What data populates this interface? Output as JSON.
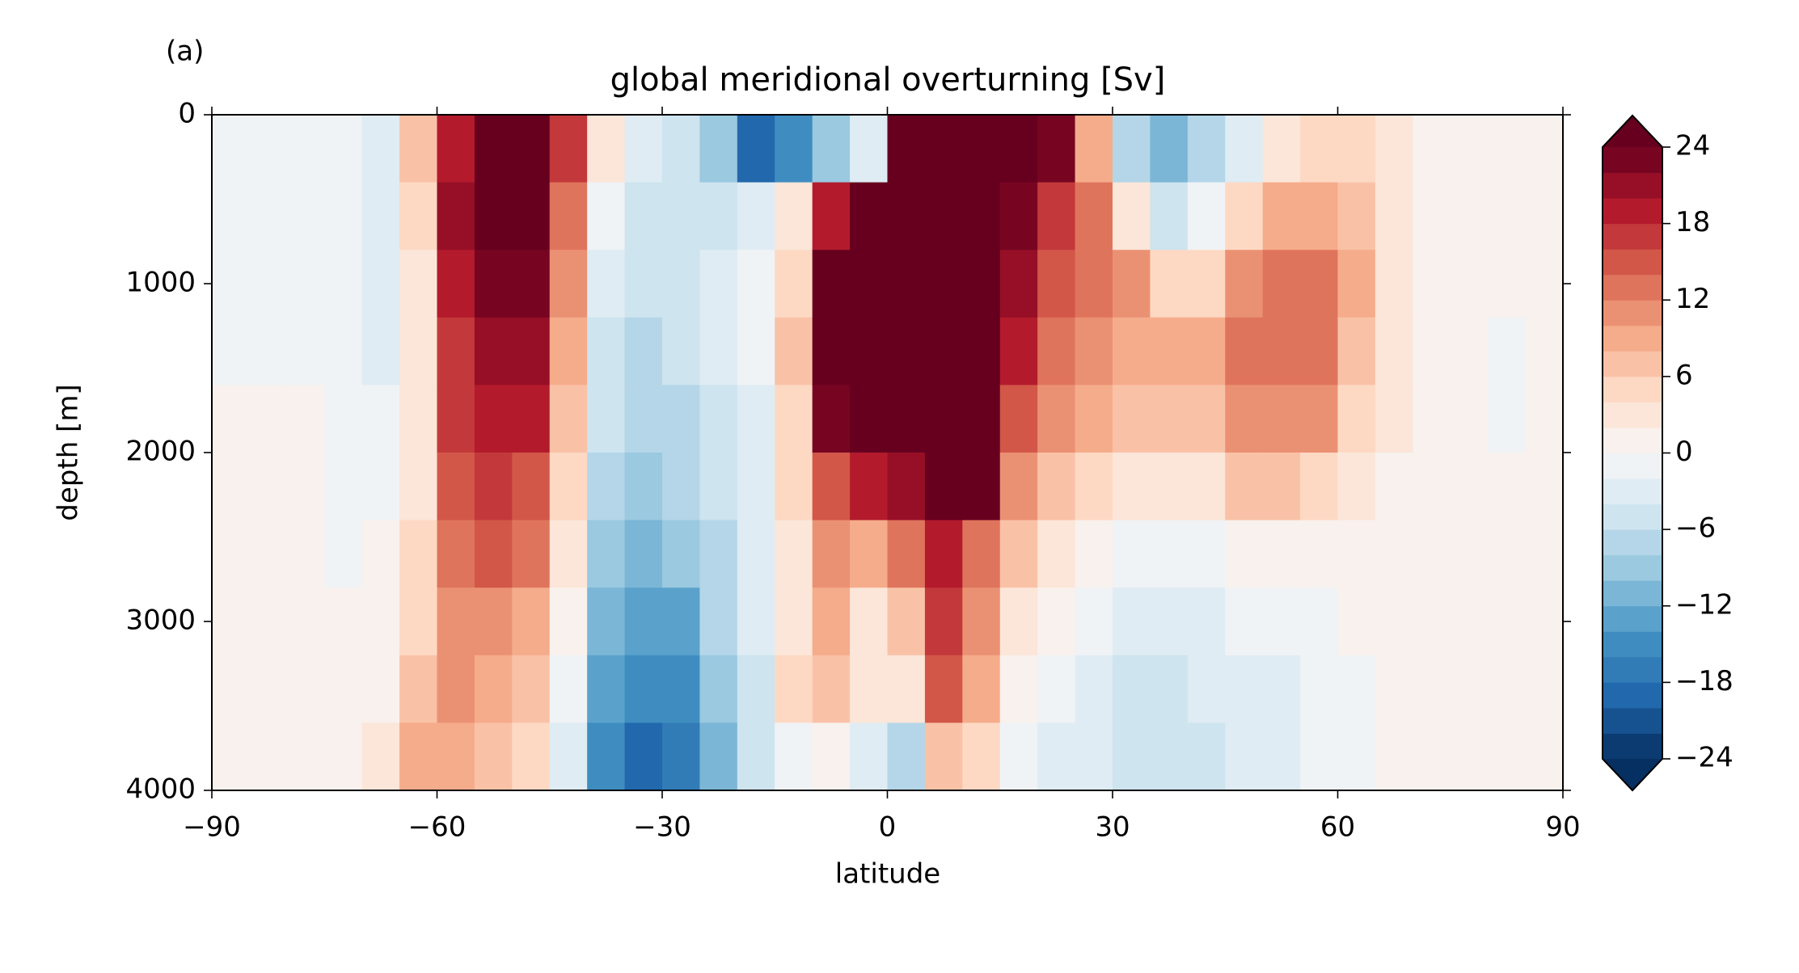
{
  "chart_data": {
    "type": "heatmap",
    "panel_label": "(a)",
    "title": "global meridional overturning [Sv]",
    "x_label": "latitude",
    "y_label": "depth [m]",
    "xlim": [
      -90,
      90
    ],
    "xticks": [
      {
        "value": -90,
        "label": "−90"
      },
      {
        "value": -60,
        "label": "−60"
      },
      {
        "value": -30,
        "label": "−30"
      },
      0,
      30,
      60,
      90
    ],
    "ylim": [
      4000,
      0
    ],
    "yticks": [
      0,
      1000,
      2000,
      3000,
      4000
    ],
    "x": [
      -87.5,
      -82.5,
      -77.5,
      -72.5,
      -67.5,
      -62.5,
      -57.5,
      -52.5,
      -47.5,
      -42.5,
      -37.5,
      -32.5,
      -27.5,
      -22.5,
      -17.5,
      -12.5,
      -7.5,
      -2.5,
      2.5,
      7.5,
      12.5,
      17.5,
      22.5,
      27.5,
      32.5,
      37.5,
      42.5,
      47.5,
      52.5,
      57.5,
      62.5,
      67.5,
      72.5,
      77.5,
      82.5,
      87.5
    ],
    "y": [
      200,
      600,
      1000,
      1400,
      1800,
      2200,
      2600,
      3000,
      3400,
      3800
    ],
    "values": [
      [
        -1,
        -1,
        -1,
        -1,
        1,
        1,
        1,
        1,
        1,
        1
      ],
      [
        -1,
        -1,
        -1,
        -1,
        1,
        1,
        1,
        1,
        1,
        1
      ],
      [
        -1,
        -2,
        -2,
        -1,
        1,
        1,
        1,
        1,
        1,
        1
      ],
      [
        -2,
        -2,
        -2,
        -2,
        -2,
        -2,
        -1,
        0,
        1,
        1
      ],
      [
        -3,
        -3,
        -3,
        -3,
        -2,
        -1,
        0,
        0,
        1,
        2
      ],
      [
        6,
        4,
        3,
        3,
        3,
        3,
        4,
        4,
        6,
        8
      ],
      [
        18,
        20,
        18,
        16,
        16,
        14,
        12,
        10,
        10,
        8
      ],
      [
        26,
        26,
        22,
        20,
        18,
        16,
        14,
        10,
        8,
        6
      ],
      [
        26,
        26,
        22,
        20,
        18,
        14,
        12,
        8,
        6,
        4
      ],
      [
        16,
        12,
        10,
        8,
        6,
        4,
        2,
        0,
        -2,
        -4
      ],
      [
        2,
        -2,
        -4,
        -5,
        -6,
        -8,
        -10,
        -12,
        -14,
        -16
      ],
      [
        -4,
        -6,
        -6,
        -7,
        -8,
        -10,
        -12,
        -14,
        -16,
        -20
      ],
      [
        -6,
        -6,
        -5,
        -6,
        -7,
        -8,
        -10,
        -13,
        -15,
        -18
      ],
      [
        -10,
        -5,
        -4,
        -4,
        -5,
        -6,
        -7,
        -8,
        -10,
        -12
      ],
      [
        -20,
        -4,
        -2,
        -2,
        -3,
        -3,
        -4,
        -4,
        -6,
        -6
      ],
      [
        -16,
        2,
        4,
        6,
        4,
        4,
        2,
        2,
        4,
        -2
      ],
      [
        -10,
        18,
        26,
        26,
        22,
        14,
        10,
        8,
        6,
        0
      ],
      [
        -4,
        26,
        26,
        26,
        26,
        18,
        8,
        2,
        2,
        -4
      ],
      [
        26,
        26,
        26,
        26,
        26,
        20,
        12,
        6,
        2,
        -8
      ],
      [
        26,
        26,
        26,
        26,
        26,
        26,
        18,
        16,
        14,
        6
      ],
      [
        26,
        26,
        26,
        26,
        26,
        24,
        12,
        10,
        8,
        4
      ],
      [
        26,
        22,
        20,
        18,
        14,
        10,
        6,
        2,
        0,
        -2
      ],
      [
        22,
        16,
        14,
        12,
        10,
        6,
        3,
        0,
        -2,
        -4
      ],
      [
        8,
        12,
        12,
        10,
        8,
        4,
        0,
        -2,
        -3,
        -4
      ],
      [
        -8,
        2,
        10,
        8,
        6,
        2,
        -1,
        -3,
        -5,
        -6
      ],
      [
        -12,
        -6,
        4,
        8,
        6,
        3,
        -1,
        -3,
        -5,
        -6
      ],
      [
        -8,
        -2,
        4,
        8,
        6,
        3,
        -2,
        -3,
        -4,
        -6
      ],
      [
        -4,
        4,
        10,
        12,
        10,
        6,
        0,
        -2,
        -4,
        -4
      ],
      [
        2,
        8,
        12,
        12,
        10,
        6,
        0,
        -2,
        -3,
        -4
      ],
      [
        4,
        8,
        12,
        12,
        10,
        4,
        0,
        -1,
        -2,
        -2
      ],
      [
        4,
        6,
        8,
        6,
        4,
        2,
        0,
        0,
        -1,
        -1
      ],
      [
        2,
        3,
        3,
        2,
        2,
        1,
        1,
        1,
        1,
        1
      ],
      [
        1,
        1,
        1,
        1,
        1,
        1,
        1,
        1,
        1,
        1
      ],
      [
        1,
        1,
        0,
        0,
        0,
        0,
        1,
        1,
        1,
        1
      ],
      [
        1,
        1,
        0,
        -1,
        -1,
        0,
        1,
        1,
        1,
        1
      ],
      [
        0,
        0,
        0,
        0,
        0,
        0,
        0,
        0,
        0,
        0
      ]
    ],
    "levels": [
      -24,
      -22,
      -20,
      -18,
      -16,
      -14,
      -12,
      -10,
      -8,
      -6,
      -4,
      -2,
      0,
      2,
      4,
      6,
      8,
      10,
      12,
      14,
      16,
      18,
      20,
      22,
      24
    ],
    "colorbar_ticks": [
      {
        "value": -24,
        "label": "−24"
      },
      {
        "value": -18,
        "label": "−18"
      },
      {
        "value": -12,
        "label": "−12"
      },
      {
        "value": -6,
        "label": "−6"
      },
      0,
      6,
      12,
      18,
      24
    ],
    "colormap": "RdBu_r"
  }
}
